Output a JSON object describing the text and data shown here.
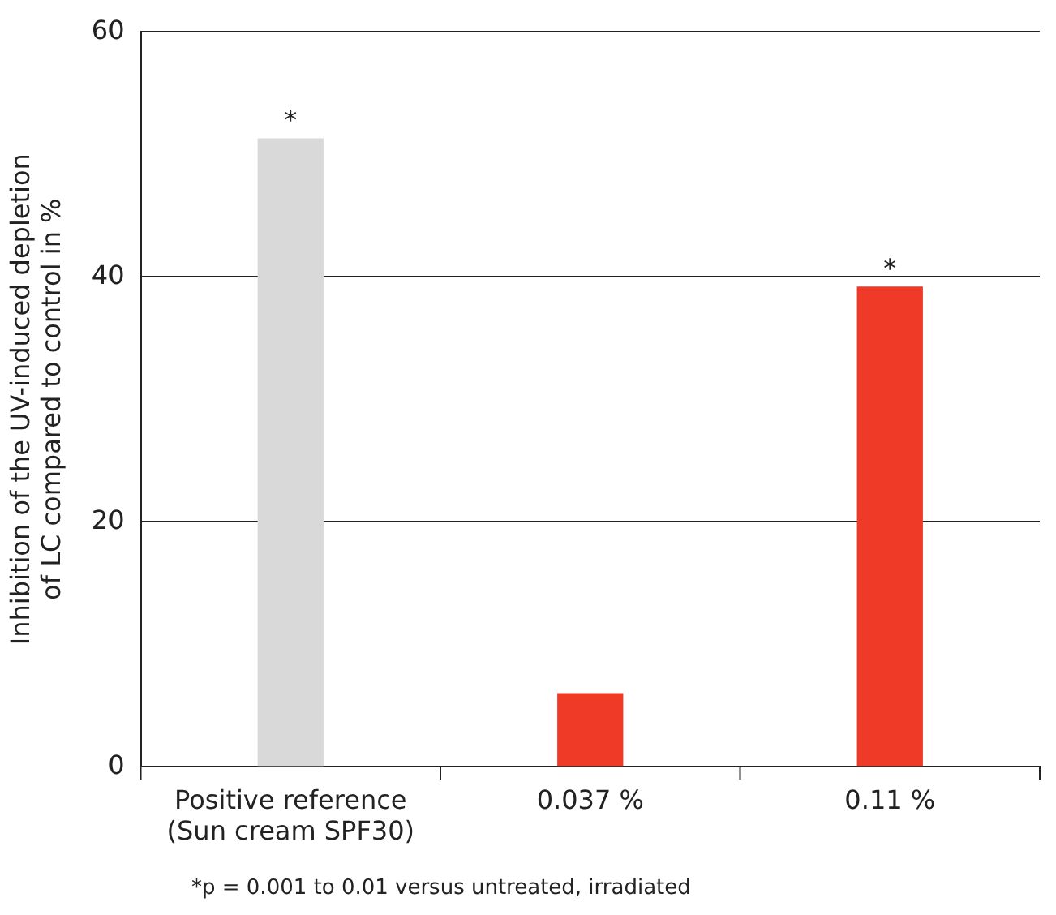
{
  "chart_data": {
    "type": "bar",
    "ylabel": "Inhibition of the UV-induced depletion\nof LC compared to control in %",
    "categories": [
      "Positive reference\n(Sun cream SPF30)",
      "0.037 %",
      "0.11 %"
    ],
    "values": [
      51.3,
      6.0,
      39.2
    ],
    "colors": [
      "#d9d9d9",
      "#ee3a26",
      "#ee3a26"
    ],
    "ylim": [
      0,
      60
    ],
    "yticks": [
      0,
      20,
      40,
      60
    ],
    "grid": "y",
    "legend": false,
    "annotations": [
      {
        "text": "*",
        "x": "Positive reference\n(Sun cream SPF30)",
        "y": 51.3
      },
      {
        "text": "*",
        "x": "0.11 %",
        "y": 39.2
      },
      "*p = 0.001 to 0.01 versus untreated, irradiated"
    ]
  }
}
